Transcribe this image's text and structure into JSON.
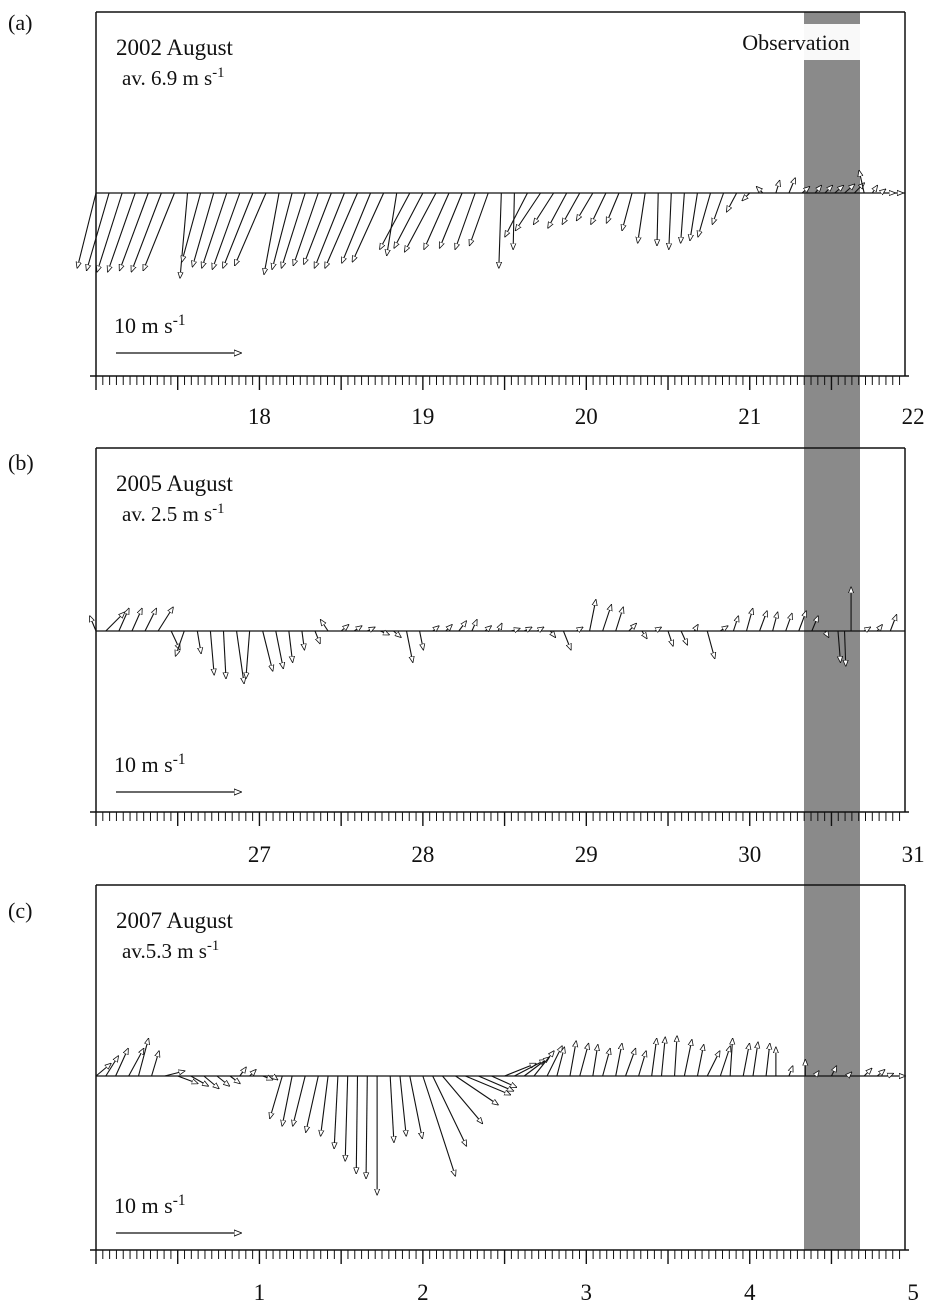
{
  "figure": {
    "shade_label": "Observation",
    "colors": {
      "shade": "#8a8a8a",
      "ink": "#111111",
      "label_box": "#ffffff"
    }
  },
  "chart_data": [
    {
      "type": "vector",
      "panel_label": "(a)",
      "title": "2002 August",
      "subtitle": "av. 6.9 m s-1",
      "scale_label": "10 m s-1",
      "scale_value": 10,
      "days": [
        "18",
        "19",
        "20",
        "21",
        "22"
      ],
      "highlight_day": "22",
      "x_range": [
        17.5,
        22.45
      ],
      "observation_range": [
        21.85,
        22.18
      ],
      "y_range": [
        -10,
        5
      ],
      "series": [
        {
          "x": 17.5,
          "u": -1.5,
          "v": -6.0
        },
        {
          "x": 17.58,
          "u": -1.8,
          "v": -6.2
        },
        {
          "x": 17.66,
          "u": -2.0,
          "v": -6.3
        },
        {
          "x": 17.74,
          "u": -2.2,
          "v": -6.3
        },
        {
          "x": 17.82,
          "u": -2.3,
          "v": -6.2
        },
        {
          "x": 17.9,
          "u": -2.4,
          "v": -6.3
        },
        {
          "x": 17.98,
          "u": -2.5,
          "v": -6.2
        },
        {
          "x": 18.06,
          "u": -0.6,
          "v": -6.8
        },
        {
          "x": 18.14,
          "u": -1.5,
          "v": -5.5
        },
        {
          "x": 18.22,
          "u": -1.7,
          "v": -5.9
        },
        {
          "x": 18.3,
          "u": -2.0,
          "v": -6.0
        },
        {
          "x": 18.38,
          "u": -2.2,
          "v": -6.1
        },
        {
          "x": 18.46,
          "u": -2.4,
          "v": -6.0
        },
        {
          "x": 18.54,
          "u": -2.5,
          "v": -5.8
        },
        {
          "x": 18.62,
          "u": -1.2,
          "v": -6.5
        },
        {
          "x": 18.7,
          "u": -1.6,
          "v": -6.1
        },
        {
          "x": 18.78,
          "u": -1.9,
          "v": -6.0
        },
        {
          "x": 18.86,
          "u": -2.0,
          "v": -5.8
        },
        {
          "x": 18.94,
          "u": -2.2,
          "v": -5.7
        },
        {
          "x": 19.02,
          "u": -2.4,
          "v": -6.0
        },
        {
          "x": 19.1,
          "u": -2.6,
          "v": -6.0
        },
        {
          "x": 19.18,
          "u": -2.3,
          "v": -5.6
        },
        {
          "x": 19.26,
          "u": -2.5,
          "v": -5.5
        },
        {
          "x": 19.34,
          "u": -0.8,
          "v": -5.0
        },
        {
          "x": 19.42,
          "u": -2.4,
          "v": -4.5
        },
        {
          "x": 19.5,
          "u": -2.3,
          "v": -4.4
        },
        {
          "x": 19.58,
          "u": -2.5,
          "v": -4.7
        },
        {
          "x": 19.66,
          "u": -2.0,
          "v": -4.5
        },
        {
          "x": 19.74,
          "u": -1.8,
          "v": -4.4
        },
        {
          "x": 19.82,
          "u": -1.6,
          "v": -4.5
        },
        {
          "x": 19.9,
          "u": -1.5,
          "v": -4.2
        },
        {
          "x": 19.98,
          "u": -0.2,
          "v": -6.0
        },
        {
          "x": 20.06,
          "u": -0.1,
          "v": -4.5
        },
        {
          "x": 20.14,
          "u": -1.8,
          "v": -3.5
        },
        {
          "x": 20.22,
          "u": -2.0,
          "v": -3.0
        },
        {
          "x": 20.3,
          "u": -1.6,
          "v": -2.5
        },
        {
          "x": 20.38,
          "u": -1.5,
          "v": -2.8
        },
        {
          "x": 20.46,
          "u": -1.4,
          "v": -2.5
        },
        {
          "x": 20.54,
          "u": -1.3,
          "v": -2.2
        },
        {
          "x": 20.62,
          "u": -1.2,
          "v": -2.5
        },
        {
          "x": 20.7,
          "u": -1.0,
          "v": -2.4
        },
        {
          "x": 20.78,
          "u": -0.8,
          "v": -3.0
        },
        {
          "x": 20.86,
          "u": -0.6,
          "v": -4.0
        },
        {
          "x": 20.94,
          "u": -0.1,
          "v": -4.2
        },
        {
          "x": 21.02,
          "u": -0.2,
          "v": -4.5
        },
        {
          "x": 21.1,
          "u": -0.3,
          "v": -4.0
        },
        {
          "x": 21.18,
          "u": -0.6,
          "v": -3.8
        },
        {
          "x": 21.26,
          "u": -1.0,
          "v": -3.5
        },
        {
          "x": 21.34,
          "u": -0.9,
          "v": -2.5
        },
        {
          "x": 21.42,
          "u": -0.8,
          "v": -1.5
        },
        {
          "x": 21.5,
          "u": -0.6,
          "v": -0.6
        },
        {
          "x": 21.58,
          "u": -0.5,
          "v": 0.5
        },
        {
          "x": 21.66,
          "u": 0.3,
          "v": 1.0
        },
        {
          "x": 21.74,
          "u": 0.5,
          "v": 1.2
        },
        {
          "x": 21.82,
          "u": 0.6,
          "v": 0.5
        },
        {
          "x": 21.9,
          "u": 0.5,
          "v": 0.6
        },
        {
          "x": 21.96,
          "u": 0.6,
          "v": 0.6
        },
        {
          "x": 22.02,
          "u": 0.7,
          "v": 0.6
        },
        {
          "x": 22.08,
          "u": 0.8,
          "v": 0.7
        },
        {
          "x": 22.14,
          "u": 0.8,
          "v": 0.8
        },
        {
          "x": 22.2,
          "u": -0.4,
          "v": 1.8
        },
        {
          "x": 22.25,
          "u": 0.4,
          "v": 0.6
        },
        {
          "x": 22.3,
          "u": 0.4,
          "v": 0.3
        },
        {
          "x": 22.35,
          "u": 0.5,
          "v": 0.0
        },
        {
          "x": 22.4,
          "u": 0.5,
          "v": 0.0
        }
      ]
    },
    {
      "type": "vector",
      "panel_label": "(b)",
      "title": "2005 August",
      "subtitle": "av. 2.5 m s-1",
      "scale_label": "10 m s-1",
      "scale_value": 10,
      "days": [
        "27",
        "28",
        "29",
        "30",
        "31"
      ],
      "highlight_day": "31",
      "x_range": [
        26.5,
        31.45
      ],
      "observation_range": [
        30.85,
        31.18
      ],
      "y_range": [
        -10,
        10
      ],
      "series": [
        {
          "x": 26.5,
          "u": -0.5,
          "v": 1.2
        },
        {
          "x": 26.56,
          "u": 1.5,
          "v": 1.5
        },
        {
          "x": 26.64,
          "u": 0.8,
          "v": 1.8
        },
        {
          "x": 26.72,
          "u": 0.8,
          "v": 1.8
        },
        {
          "x": 26.8,
          "u": 0.9,
          "v": 1.8
        },
        {
          "x": 26.88,
          "u": 1.2,
          "v": 1.9
        },
        {
          "x": 26.96,
          "u": 0.7,
          "v": -1.5
        },
        {
          "x": 27.04,
          "u": -0.7,
          "v": -2.0
        },
        {
          "x": 27.12,
          "u": 0.3,
          "v": -1.8
        },
        {
          "x": 27.2,
          "u": 0.3,
          "v": -3.5
        },
        {
          "x": 27.28,
          "u": 0.2,
          "v": -3.8
        },
        {
          "x": 27.36,
          "u": 0.6,
          "v": -4.2
        },
        {
          "x": 27.44,
          "u": -0.3,
          "v": -3.8
        },
        {
          "x": 27.52,
          "u": 0.8,
          "v": -3.2
        },
        {
          "x": 27.6,
          "u": 0.6,
          "v": -3.0
        },
        {
          "x": 27.68,
          "u": 0.3,
          "v": -2.5
        },
        {
          "x": 27.76,
          "u": 0.2,
          "v": -1.5
        },
        {
          "x": 27.84,
          "u": 0.4,
          "v": -1.0
        },
        {
          "x": 27.92,
          "u": -0.6,
          "v": 0.9
        },
        {
          "x": 28.0,
          "u": 0.6,
          "v": 0.5
        },
        {
          "x": 28.08,
          "u": 0.6,
          "v": 0.4
        },
        {
          "x": 28.16,
          "u": 0.6,
          "v": 0.3
        },
        {
          "x": 28.24,
          "u": 0.7,
          "v": -0.3
        },
        {
          "x": 28.32,
          "u": 0.6,
          "v": -0.5
        },
        {
          "x": 28.4,
          "u": 0.5,
          "v": -2.5
        },
        {
          "x": 28.48,
          "u": 0.3,
          "v": -1.5
        },
        {
          "x": 28.56,
          "u": 0.5,
          "v": 0.4
        },
        {
          "x": 28.64,
          "u": 0.5,
          "v": 0.5
        },
        {
          "x": 28.72,
          "u": 0.6,
          "v": 0.8
        },
        {
          "x": 28.8,
          "u": 0.4,
          "v": 0.9
        },
        {
          "x": 28.88,
          "u": 0.5,
          "v": 0.4
        },
        {
          "x": 28.96,
          "u": 0.3,
          "v": 0.6
        },
        {
          "x": 29.04,
          "u": 0.7,
          "v": 0.2
        },
        {
          "x": 29.12,
          "u": 0.6,
          "v": 0.3
        },
        {
          "x": 29.2,
          "u": 0.5,
          "v": 0.3
        },
        {
          "x": 29.28,
          "u": 0.4,
          "v": -0.5
        },
        {
          "x": 29.36,
          "u": 0.6,
          "v": -1.5
        },
        {
          "x": 29.44,
          "u": 0.5,
          "v": 0.3
        },
        {
          "x": 29.52,
          "u": 0.5,
          "v": 2.5
        },
        {
          "x": 29.6,
          "u": 0.7,
          "v": 2.1
        },
        {
          "x": 29.68,
          "u": 0.6,
          "v": 1.9
        },
        {
          "x": 29.76,
          "u": 0.6,
          "v": 0.6
        },
        {
          "x": 29.84,
          "u": 0.4,
          "v": -0.6
        },
        {
          "x": 29.92,
          "u": 0.5,
          "v": 0.3
        },
        {
          "x": 30.0,
          "u": 0.4,
          "v": -1.2
        },
        {
          "x": 30.08,
          "u": 0.5,
          "v": -1.1
        },
        {
          "x": 30.16,
          "u": 0.3,
          "v": 0.5
        },
        {
          "x": 30.24,
          "u": 0.6,
          "v": -2.2
        },
        {
          "x": 30.32,
          "u": 0.6,
          "v": 0.4
        },
        {
          "x": 30.4,
          "u": 0.4,
          "v": 1.2
        },
        {
          "x": 30.48,
          "u": 0.5,
          "v": 1.8
        },
        {
          "x": 30.56,
          "u": 0.6,
          "v": 1.6
        },
        {
          "x": 30.64,
          "u": 0.4,
          "v": 1.5
        },
        {
          "x": 30.72,
          "u": 0.5,
          "v": 1.4
        },
        {
          "x": 30.8,
          "u": 0.6,
          "v": 1.6
        },
        {
          "x": 30.88,
          "u": 0.5,
          "v": 1.2
        },
        {
          "x": 30.96,
          "u": 0.3,
          "v": -0.5
        },
        {
          "x": 31.04,
          "u": 0.2,
          "v": -2.5
        },
        {
          "x": 31.08,
          "u": 0.1,
          "v": -2.8
        },
        {
          "x": 31.12,
          "u": 0.0,
          "v": 3.5
        },
        {
          "x": 31.2,
          "u": 0.5,
          "v": 0.3
        },
        {
          "x": 31.28,
          "u": 0.4,
          "v": 0.5
        },
        {
          "x": 31.36,
          "u": 0.5,
          "v": 1.3
        }
      ]
    },
    {
      "type": "vector",
      "panel_label": "(c)",
      "title": "2007 August",
      "subtitle": "av.5.3 m s-1",
      "scale_label": "10 m s-1",
      "scale_value": 10,
      "days": [
        "1",
        "2",
        "3",
        "4",
        "5"
      ],
      "highlight_day": "",
      "x_range": [
        0.5,
        5.45
      ],
      "observation_range": [
        4.85,
        5.18
      ],
      "y_range": [
        -10,
        5
      ],
      "series": [
        {
          "x": 0.5,
          "u": 1.2,
          "v": 1.0
        },
        {
          "x": 0.56,
          "u": 1.0,
          "v": 1.6
        },
        {
          "x": 0.62,
          "u": 1.0,
          "v": 2.2
        },
        {
          "x": 0.7,
          "u": 1.2,
          "v": 2.2
        },
        {
          "x": 0.76,
          "u": 0.8,
          "v": 3.0
        },
        {
          "x": 0.84,
          "u": 0.6,
          "v": 2.0
        },
        {
          "x": 0.92,
          "u": 1.6,
          "v": 0.4
        },
        {
          "x": 1.0,
          "u": 1.6,
          "v": -0.6
        },
        {
          "x": 1.08,
          "u": 1.4,
          "v": -0.8
        },
        {
          "x": 1.16,
          "u": 1.2,
          "v": -1.0
        },
        {
          "x": 1.24,
          "u": 1.0,
          "v": -0.8
        },
        {
          "x": 1.32,
          "u": 0.8,
          "v": -0.6
        },
        {
          "x": 1.38,
          "u": 0.5,
          "v": 0.7
        },
        {
          "x": 1.44,
          "u": 0.5,
          "v": 0.5
        },
        {
          "x": 1.52,
          "u": 0.8,
          "v": -0.3
        },
        {
          "x": 1.58,
          "u": 0.4,
          "v": -0.3
        },
        {
          "x": 1.64,
          "u": -1.0,
          "v": -3.4
        },
        {
          "x": 1.7,
          "u": -0.8,
          "v": -4.0
        },
        {
          "x": 1.78,
          "u": -1.0,
          "v": -4.0
        },
        {
          "x": 1.86,
          "u": -1.0,
          "v": -4.5
        },
        {
          "x": 1.92,
          "u": -0.6,
          "v": -4.8
        },
        {
          "x": 1.98,
          "u": -0.3,
          "v": -5.8
        },
        {
          "x": 2.04,
          "u": -0.2,
          "v": -6.8
        },
        {
          "x": 2.1,
          "u": -0.1,
          "v": -7.8
        },
        {
          "x": 2.16,
          "u": -0.1,
          "v": -8.2
        },
        {
          "x": 2.22,
          "u": 0.0,
          "v": -9.5
        },
        {
          "x": 2.3,
          "u": 0.3,
          "v": -5.3
        },
        {
          "x": 2.36,
          "u": 0.5,
          "v": -4.8
        },
        {
          "x": 2.42,
          "u": 1.0,
          "v": -5.0
        },
        {
          "x": 2.5,
          "u": 2.6,
          "v": -8.0
        },
        {
          "x": 2.56,
          "u": 2.7,
          "v": -5.6
        },
        {
          "x": 2.62,
          "u": 3.2,
          "v": -3.8
        },
        {
          "x": 2.7,
          "u": 3.4,
          "v": -2.3
        },
        {
          "x": 2.76,
          "u": 3.6,
          "v": -1.5
        },
        {
          "x": 2.84,
          "u": 2.8,
          "v": -1.2
        },
        {
          "x": 2.92,
          "u": 2.0,
          "v": -0.9
        },
        {
          "x": 3.0,
          "u": 2.5,
          "v": 1.0
        },
        {
          "x": 3.06,
          "u": 2.5,
          "v": 1.3
        },
        {
          "x": 3.12,
          "u": 2.0,
          "v": 1.5
        },
        {
          "x": 3.18,
          "u": 1.6,
          "v": 2.0
        },
        {
          "x": 3.26,
          "u": 1.2,
          "v": 2.4
        },
        {
          "x": 3.32,
          "u": 0.6,
          "v": 2.3
        },
        {
          "x": 3.4,
          "u": 0.5,
          "v": 2.8
        },
        {
          "x": 3.46,
          "u": 0.7,
          "v": 2.6
        },
        {
          "x": 3.54,
          "u": 0.4,
          "v": 2.5
        },
        {
          "x": 3.6,
          "u": 0.6,
          "v": 2.2
        },
        {
          "x": 3.68,
          "u": 0.5,
          "v": 2.6
        },
        {
          "x": 3.74,
          "u": 0.8,
          "v": 2.2
        },
        {
          "x": 3.82,
          "u": 0.6,
          "v": 2.0
        },
        {
          "x": 3.9,
          "u": 0.4,
          "v": 3.0
        },
        {
          "x": 3.96,
          "u": 0.3,
          "v": 3.1
        },
        {
          "x": 4.04,
          "u": 0.2,
          "v": 3.2
        },
        {
          "x": 4.1,
          "u": 0.6,
          "v": 2.9
        },
        {
          "x": 4.18,
          "u": 0.5,
          "v": 2.5
        },
        {
          "x": 4.24,
          "u": 1.0,
          "v": 2.0
        },
        {
          "x": 4.32,
          "u": 0.8,
          "v": 2.4
        },
        {
          "x": 4.38,
          "u": 0.2,
          "v": 3.0
        },
        {
          "x": 4.46,
          "u": 0.5,
          "v": 2.6
        },
        {
          "x": 4.52,
          "u": 0.4,
          "v": 2.7
        },
        {
          "x": 4.6,
          "u": 0.3,
          "v": 2.6
        },
        {
          "x": 4.66,
          "u": 0.0,
          "v": 2.3
        },
        {
          "x": 4.74,
          "u": 0.3,
          "v": 0.8
        },
        {
          "x": 4.84,
          "u": 0.0,
          "v": 1.3
        },
        {
          "x": 4.9,
          "u": 0.3,
          "v": 0.4
        },
        {
          "x": 5.0,
          "u": 0.4,
          "v": 0.8
        },
        {
          "x": 5.1,
          "u": 0.3,
          "v": 0.3
        },
        {
          "x": 5.2,
          "u": 0.6,
          "v": 0.6
        },
        {
          "x": 5.28,
          "u": 0.6,
          "v": 0.5
        },
        {
          "x": 5.34,
          "u": 0.5,
          "v": 0.2
        },
        {
          "x": 5.42,
          "u": 0.4,
          "v": 0.0
        }
      ]
    }
  ]
}
